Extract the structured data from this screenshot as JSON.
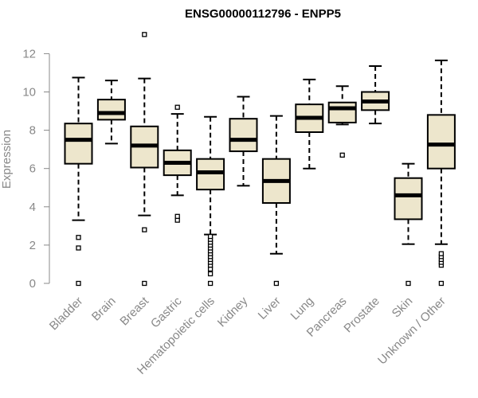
{
  "chart_data": {
    "type": "boxplot",
    "title": "ENSG00000112796 - ENPP5",
    "ylabel": "Expression",
    "xlabel": "",
    "ylim": [
      0,
      13
    ],
    "yticks": [
      0,
      2,
      4,
      6,
      8,
      10,
      12
    ],
    "colors": {
      "box_fill": "#ede6cc",
      "stroke": "#000000",
      "axis_text": "#888888"
    },
    "categories": [
      "Bladder",
      "Brain",
      "Breast",
      "Gastric",
      "Hematopoietic cells",
      "Kidney",
      "Liver",
      "Lung",
      "Pancreas",
      "Prostate",
      "Skin",
      "Unknown / Other"
    ],
    "boxes": [
      {
        "name": "Bladder",
        "whisker_low": 3.3,
        "q1": 6.25,
        "median": 7.5,
        "q3": 8.35,
        "whisker_high": 10.75,
        "outliers": [
          0,
          1.85,
          2.4
        ]
      },
      {
        "name": "Brain",
        "whisker_low": 7.3,
        "q1": 8.55,
        "median": 8.9,
        "q3": 9.6,
        "whisker_high": 10.6,
        "outliers": []
      },
      {
        "name": "Breast",
        "whisker_low": 3.55,
        "q1": 6.05,
        "median": 7.2,
        "q3": 8.2,
        "whisker_high": 10.7,
        "outliers": [
          0,
          2.8,
          13.0
        ]
      },
      {
        "name": "Gastric",
        "whisker_low": 4.6,
        "q1": 5.65,
        "median": 6.3,
        "q3": 6.95,
        "whisker_high": 8.85,
        "outliers": [
          3.3,
          3.5,
          9.2
        ]
      },
      {
        "name": "Hematopoietic cells",
        "whisker_low": 2.55,
        "q1": 4.9,
        "median": 5.8,
        "q3": 6.5,
        "whisker_high": 8.7,
        "outliers": [
          0,
          0.5,
          0.75,
          0.95,
          1.1,
          1.25,
          1.4,
          1.55,
          1.7,
          1.85,
          2.0,
          2.15,
          2.3,
          2.45
        ]
      },
      {
        "name": "Kidney",
        "whisker_low": 5.1,
        "q1": 6.9,
        "median": 7.5,
        "q3": 8.6,
        "whisker_high": 9.75,
        "outliers": []
      },
      {
        "name": "Liver",
        "whisker_low": 1.55,
        "q1": 4.2,
        "median": 5.35,
        "q3": 6.5,
        "whisker_high": 8.75,
        "outliers": [
          0
        ]
      },
      {
        "name": "Lung",
        "whisker_low": 6.0,
        "q1": 7.9,
        "median": 8.65,
        "q3": 9.35,
        "whisker_high": 10.65,
        "outliers": []
      },
      {
        "name": "Pancreas",
        "whisker_low": 8.3,
        "q1": 8.4,
        "median": 9.15,
        "q3": 9.45,
        "whisker_high": 10.3,
        "outliers": [
          6.7
        ]
      },
      {
        "name": "Prostate",
        "whisker_low": 8.35,
        "q1": 9.05,
        "median": 9.5,
        "q3": 10.0,
        "whisker_high": 11.35,
        "outliers": []
      },
      {
        "name": "Skin",
        "whisker_low": 2.05,
        "q1": 3.35,
        "median": 4.6,
        "q3": 5.5,
        "whisker_high": 6.25,
        "outliers": [
          0
        ]
      },
      {
        "name": "Unknown / Other",
        "whisker_low": 2.05,
        "q1": 6.0,
        "median": 7.25,
        "q3": 8.8,
        "whisker_high": 11.65,
        "outliers": [
          0,
          0.95,
          1.1,
          1.25,
          1.4,
          1.55
        ]
      }
    ]
  }
}
